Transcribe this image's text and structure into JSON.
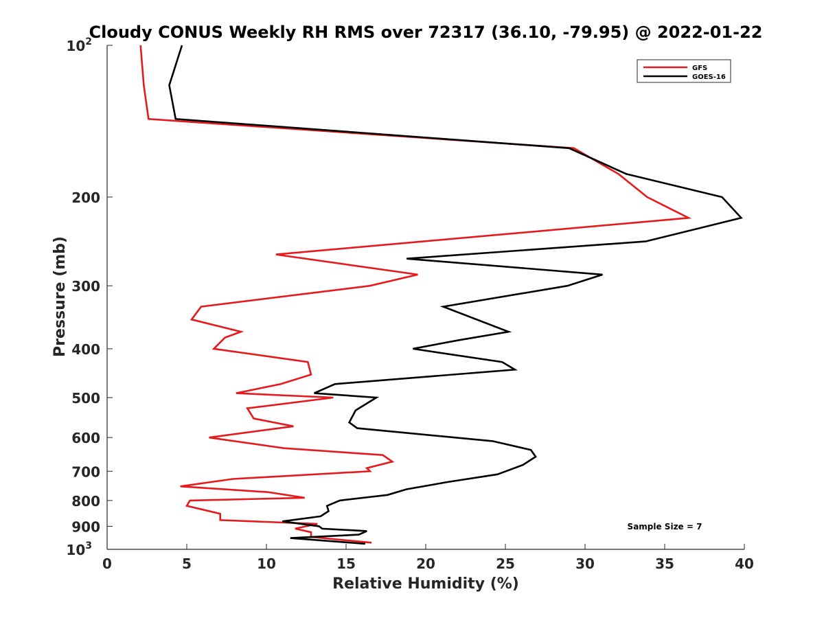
{
  "chart_data": {
    "type": "line",
    "title": "Cloudy CONUS Weekly RH RMS over 72317 (36.10, -79.95) @ 2022-01-22",
    "xlabel": "Relative Humidity (%)",
    "ylabel": "Pressure (mb)",
    "xlim": [
      0,
      40
    ],
    "ylim": [
      100,
      1000
    ],
    "y_scale": "log",
    "y_reversed": true,
    "grid": false,
    "legend_position": "top-right",
    "x_ticks": [
      0,
      5,
      10,
      15,
      20,
      25,
      30,
      35,
      40
    ],
    "y_ticks": [
      {
        "value": 100,
        "base": "10",
        "exp": "2"
      },
      {
        "value": 200,
        "label": "200"
      },
      {
        "value": 300,
        "label": "300"
      },
      {
        "value": 400,
        "label": "400"
      },
      {
        "value": 500,
        "label": "500"
      },
      {
        "value": 600,
        "label": "600"
      },
      {
        "value": 700,
        "label": "700"
      },
      {
        "value": 800,
        "label": "800"
      },
      {
        "value": 900,
        "label": "900"
      },
      {
        "value": 1000,
        "base": "10",
        "exp": "3"
      }
    ],
    "annotation": "Sample Size = 7",
    "series": [
      {
        "name": "GFS",
        "color": "#e41a1c",
        "points": [
          [
            2.1,
            100
          ],
          [
            2.3,
            120
          ],
          [
            2.6,
            140
          ],
          [
            29.3,
            160
          ],
          [
            32.1,
            180
          ],
          [
            33.9,
            200
          ],
          [
            36.5,
            220
          ],
          [
            10.6,
            260
          ],
          [
            19.5,
            285
          ],
          [
            16.5,
            300
          ],
          [
            5.9,
            330
          ],
          [
            5.3,
            350
          ],
          [
            8.4,
            370
          ],
          [
            7.4,
            380
          ],
          [
            6.7,
            400
          ],
          [
            12.6,
            425
          ],
          [
            12.8,
            450
          ],
          [
            10.9,
            470
          ],
          [
            8.1,
            490
          ],
          [
            14.2,
            500
          ],
          [
            8.8,
            525
          ],
          [
            9.2,
            550
          ],
          [
            11.7,
            570
          ],
          [
            6.4,
            600
          ],
          [
            11.1,
            630
          ],
          [
            17.3,
            650
          ],
          [
            17.9,
            670
          ],
          [
            16.3,
            690
          ],
          [
            16.5,
            700
          ],
          [
            7.9,
            725
          ],
          [
            4.6,
            750
          ],
          [
            10.1,
            770
          ],
          [
            12.4,
            790
          ],
          [
            5.2,
            800
          ],
          [
            5.0,
            820
          ],
          [
            7.1,
            850
          ],
          [
            7.1,
            875
          ],
          [
            13.2,
            890
          ],
          [
            11.8,
            910
          ],
          [
            12.8,
            925
          ],
          [
            12.8,
            945
          ],
          [
            16.6,
            970
          ]
        ]
      },
      {
        "name": "GOES-16",
        "color": "#000000",
        "points": [
          [
            4.7,
            100
          ],
          [
            3.9,
            120
          ],
          [
            4.3,
            140
          ],
          [
            29.0,
            160
          ],
          [
            32.6,
            180
          ],
          [
            38.6,
            200
          ],
          [
            39.8,
            220
          ],
          [
            33.8,
            245
          ],
          [
            18.8,
            265
          ],
          [
            31.1,
            285
          ],
          [
            28.9,
            300
          ],
          [
            21.1,
            330
          ],
          [
            25.2,
            370
          ],
          [
            22.0,
            385
          ],
          [
            19.2,
            400
          ],
          [
            24.8,
            425
          ],
          [
            25.6,
            440
          ],
          [
            14.3,
            470
          ],
          [
            13.0,
            490
          ],
          [
            16.9,
            500
          ],
          [
            15.6,
            530
          ],
          [
            15.2,
            560
          ],
          [
            15.7,
            575
          ],
          [
            24.2,
            610
          ],
          [
            26.6,
            635
          ],
          [
            26.9,
            655
          ],
          [
            26.1,
            680
          ],
          [
            24.5,
            710
          ],
          [
            21.4,
            735
          ],
          [
            18.8,
            760
          ],
          [
            17.6,
            780
          ],
          [
            14.6,
            800
          ],
          [
            13.8,
            820
          ],
          [
            13.9,
            840
          ],
          [
            13.4,
            860
          ],
          [
            11.0,
            880
          ],
          [
            13.3,
            900
          ],
          [
            13.5,
            910
          ],
          [
            16.3,
            920
          ],
          [
            15.8,
            935
          ],
          [
            11.5,
            950
          ],
          [
            16.2,
            975
          ]
        ]
      }
    ]
  }
}
